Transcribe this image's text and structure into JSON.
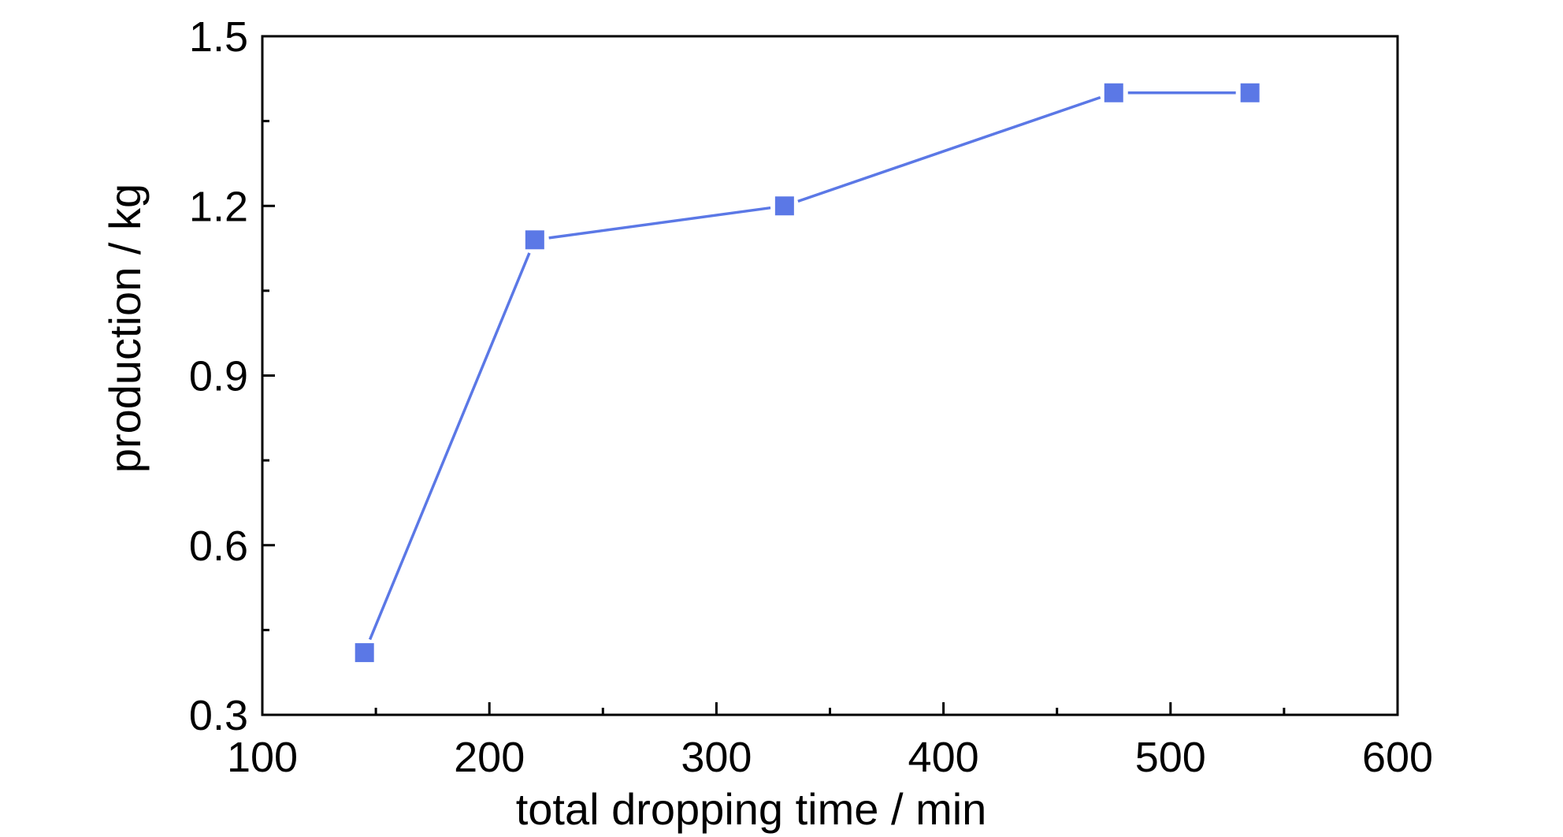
{
  "chart_data": {
    "type": "line",
    "title": "",
    "xlabel": "total dropping time / min",
    "ylabel": "production / kg",
    "xlim": [
      100,
      600
    ],
    "ylim": [
      0.3,
      1.5
    ],
    "x_ticks": [
      "100",
      "200",
      "300",
      "400",
      "500",
      "600"
    ],
    "y_ticks": [
      "0.3",
      "0.6",
      "0.9",
      "1.2",
      "1.5"
    ],
    "grid": false,
    "legend": "none",
    "series": [
      {
        "color": "#5b78e6",
        "marker": "square",
        "points": [
          {
            "x": 145,
            "y": 0.41
          },
          {
            "x": 220,
            "y": 1.14
          },
          {
            "x": 330,
            "y": 1.2
          },
          {
            "x": 475,
            "y": 1.4
          },
          {
            "x": 535,
            "y": 1.4
          }
        ]
      }
    ]
  }
}
